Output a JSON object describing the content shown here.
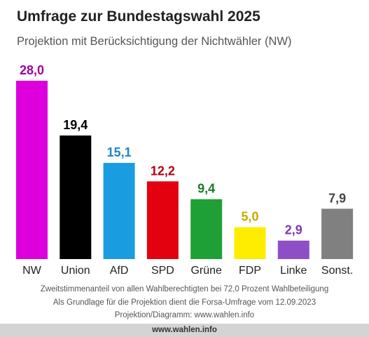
{
  "title": "Umfrage zur Bundestagswahl 2025",
  "subtitle": "Projektion mit Berücksichtigung der Nichtwähler (NW)",
  "footnotes": [
    "Zweitstimmenanteil von allen Wahlberechtigten bei 72,0 Prozent Wahlbeteiligung",
    "Als Grundlage für die Projektion dient die Forsa-Umfrage vom 12.09.2023",
    "Projektion/Diagramm: www.wahlen.info"
  ],
  "source_bar": "www.wahlen.info",
  "chart_data": {
    "type": "bar",
    "categories": [
      "NW",
      "Union",
      "AfD",
      "SPD",
      "Grüne",
      "FDP",
      "Linke",
      "Sonst."
    ],
    "values": [
      28.0,
      19.4,
      15.1,
      12.2,
      9.4,
      5.0,
      2.9,
      7.9
    ],
    "value_labels": [
      "28,0",
      "19,4",
      "15,1",
      "12,2",
      "9,4",
      "5,0",
      "2,9",
      "7,9"
    ],
    "bar_colors": [
      "#dd00dd",
      "#000000",
      "#1a9de0",
      "#e3000f",
      "#1fa035",
      "#ffed00",
      "#8e4fc6",
      "#808080"
    ],
    "label_colors": [
      "#a3009e",
      "#000000",
      "#1a86c4",
      "#b00010",
      "#1c7a28",
      "#c8a800",
      "#7a3bb0",
      "#444444"
    ],
    "ylim": [
      0,
      28.0
    ],
    "grid": false,
    "legend": "none",
    "xlabel": "",
    "ylabel": ""
  }
}
